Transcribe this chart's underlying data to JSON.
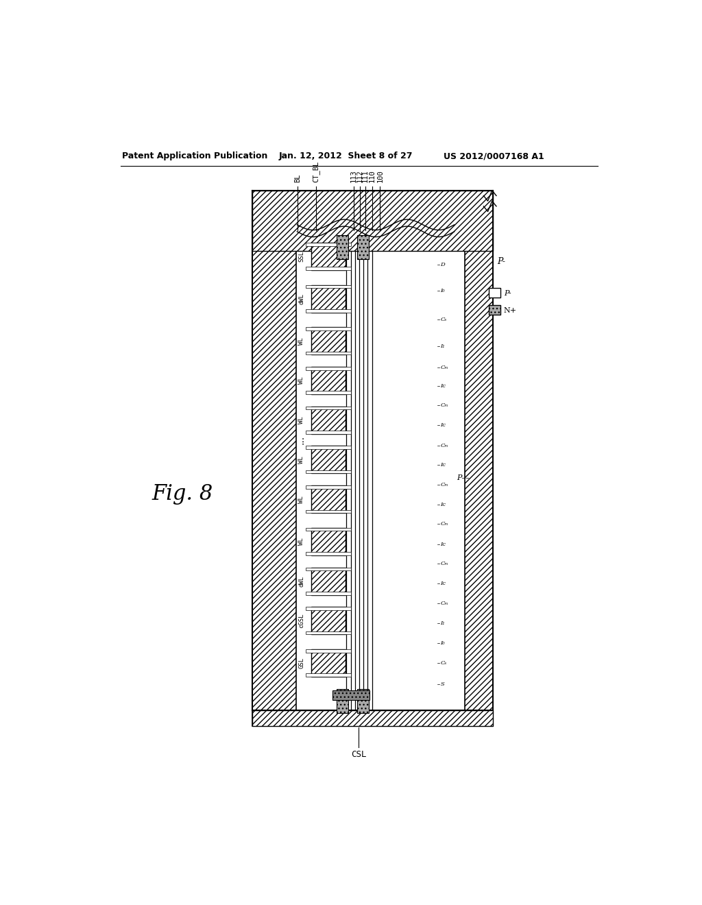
{
  "header_left": "Patent Application Publication",
  "header_mid": "Jan. 12, 2012  Sheet 8 of 27",
  "header_right": "US 2012/0007168 A1",
  "fig_label": "Fig. 8",
  "bg_color": "#ffffff",
  "line_color": "#000000",
  "top_labels": [
    "BL",
    "CT_BL",
    "113",
    "112",
    "111",
    "110",
    "100"
  ],
  "bottom_label": "CSL",
  "gate_labels": [
    "SSL",
    "dWL",
    "WL",
    "WL",
    "WL",
    "WL",
    "WL",
    "WL",
    "dWL",
    "cGSL",
    "GSL"
  ],
  "legend_p_label": "P-",
  "legend_n_label": "N+"
}
